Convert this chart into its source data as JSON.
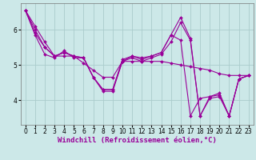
{
  "xlabel": "Windchill (Refroidissement éolien,°C)",
  "x": [
    0,
    1,
    2,
    3,
    4,
    5,
    6,
    7,
    8,
    9,
    10,
    11,
    12,
    13,
    14,
    15,
    16,
    17,
    18,
    19,
    20,
    21,
    22,
    23
  ],
  "series": [
    [
      6.55,
      6.1,
      5.65,
      5.25,
      5.25,
      5.25,
      5.05,
      4.85,
      4.65,
      4.65,
      5.1,
      5.1,
      5.1,
      5.1,
      5.1,
      5.05,
      5.0,
      4.95,
      4.9,
      4.85,
      4.75,
      4.7,
      4.7,
      4.7
    ],
    [
      6.55,
      6.0,
      5.5,
      5.25,
      5.35,
      5.25,
      5.2,
      4.65,
      4.3,
      4.3,
      5.15,
      5.25,
      5.15,
      5.25,
      5.35,
      5.85,
      5.7,
      3.55,
      4.05,
      4.1,
      4.15,
      3.55,
      4.6,
      4.7
    ],
    [
      6.55,
      5.9,
      5.5,
      5.25,
      5.35,
      5.25,
      5.2,
      4.65,
      4.3,
      4.3,
      5.1,
      5.25,
      5.2,
      5.25,
      5.35,
      5.85,
      6.35,
      5.75,
      3.55,
      4.1,
      4.2,
      3.55,
      4.6,
      4.7
    ],
    [
      6.55,
      5.85,
      5.3,
      5.2,
      5.4,
      5.2,
      5.2,
      4.65,
      4.25,
      4.25,
      5.1,
      5.2,
      5.1,
      5.2,
      5.3,
      5.65,
      6.2,
      5.7,
      3.55,
      4.05,
      4.1,
      3.55,
      4.6,
      4.7
    ]
  ],
  "line_color": "#990099",
  "marker": "D",
  "markersize": 2.0,
  "linewidth": 0.8,
  "bg_color": "#cce8e8",
  "grid_color": "#aacccc",
  "ylim": [
    3.3,
    6.75
  ],
  "yticks": [
    4,
    5,
    6
  ],
  "xticks": [
    0,
    1,
    2,
    3,
    4,
    5,
    6,
    7,
    8,
    9,
    10,
    11,
    12,
    13,
    14,
    15,
    16,
    17,
    18,
    19,
    20,
    21,
    22,
    23
  ],
  "xlabel_fontsize": 6.5,
  "tick_fontsize": 5.5
}
